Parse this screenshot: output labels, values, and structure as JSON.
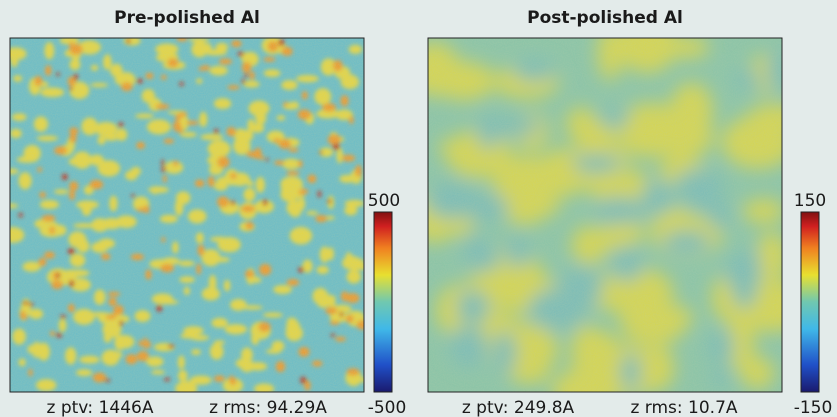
{
  "panels": [
    {
      "title": "Pre-polished Al",
      "scale_max": "500",
      "scale_min": "-500",
      "ptv": "z ptv: 1446A",
      "rms": "z rms: 94.29A"
    },
    {
      "title": "Post-polished Al",
      "scale_max": "150",
      "scale_min": "-150",
      "ptv": "z ptv: 249.8A",
      "rms": "z rms: 10.7A"
    }
  ]
}
